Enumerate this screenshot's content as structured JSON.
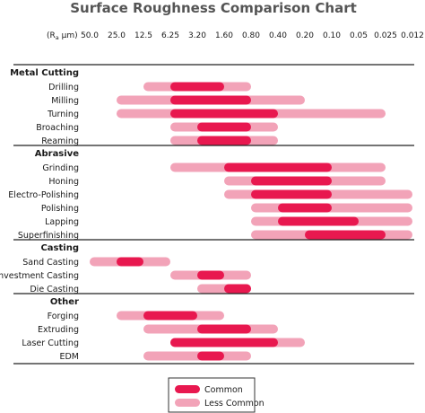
{
  "chart_data": {
    "type": "range-bar",
    "title": "Surface Roughness Comparison Chart",
    "axis": {
      "prefix": "(R",
      "prefix_sub": "a",
      "prefix_unit": " µm)",
      "ticks": [
        "50.0",
        "25.0",
        "12.5",
        "6.25",
        "3.20",
        "1.60",
        "0.80",
        "0.40",
        "0.20",
        "0.10",
        "0.05",
        "0.025",
        "0.012"
      ]
    },
    "legend": {
      "common": "Common",
      "less_common": "Less Common",
      "common_color": "#e8184f",
      "less_common_color": "#f2a3b8"
    },
    "groups": [
      {
        "name": "Metal Cutting",
        "processes": [
          {
            "name": "Drilling",
            "less_common": [
              "12.5",
              "0.80"
            ],
            "common": [
              "6.25",
              "1.60"
            ]
          },
          {
            "name": "Milling",
            "less_common": [
              "25.0",
              "0.20"
            ],
            "common": [
              "6.25",
              "0.80"
            ]
          },
          {
            "name": "Turning",
            "less_common": [
              "25.0",
              "0.025"
            ],
            "common": [
              "6.25",
              "0.40"
            ]
          },
          {
            "name": "Broaching",
            "less_common": [
              "6.25",
              "0.40"
            ],
            "common": [
              "3.20",
              "0.80"
            ]
          },
          {
            "name": "Reaming",
            "less_common": [
              "6.25",
              "0.40"
            ],
            "common": [
              "3.20",
              "0.80"
            ]
          }
        ]
      },
      {
        "name": "Abrasive",
        "processes": [
          {
            "name": "Grinding",
            "less_common": [
              "6.25",
              "0.025"
            ],
            "common": [
              "1.60",
              "0.10"
            ]
          },
          {
            "name": "Honing",
            "less_common": [
              "1.60",
              "0.025"
            ],
            "common": [
              "0.80",
              "0.10"
            ]
          },
          {
            "name": "Electro-Polishing",
            "less_common": [
              "1.60",
              "0.012"
            ],
            "common": [
              "0.80",
              "0.10"
            ]
          },
          {
            "name": "Polishing",
            "less_common": [
              "0.80",
              "0.012"
            ],
            "common": [
              "0.40",
              "0.10"
            ]
          },
          {
            "name": "Lapping",
            "less_common": [
              "0.80",
              "0.012"
            ],
            "common": [
              "0.40",
              "0.05"
            ]
          },
          {
            "name": "Superfinishing",
            "less_common": [
              "0.80",
              "0.012"
            ],
            "common": [
              "0.20",
              "0.025"
            ]
          }
        ]
      },
      {
        "name": "Casting",
        "processes": [
          {
            "name": "Sand Casting",
            "less_common": [
              "50.0",
              "6.25"
            ],
            "common": [
              "25.0",
              "12.5"
            ]
          },
          {
            "name": "Investment Casting",
            "less_common": [
              "6.25",
              "0.80"
            ],
            "common": [
              "3.20",
              "1.60"
            ]
          },
          {
            "name": "Die Casting",
            "less_common": [
              "3.20",
              "0.80"
            ],
            "common": [
              "1.60",
              "0.80"
            ]
          }
        ]
      },
      {
        "name": "Other",
        "processes": [
          {
            "name": "Forging",
            "less_common": [
              "25.0",
              "1.60"
            ],
            "common": [
              "12.5",
              "3.20"
            ]
          },
          {
            "name": "Extruding",
            "less_common": [
              "12.5",
              "0.40"
            ],
            "common": [
              "3.20",
              "0.80"
            ]
          },
          {
            "name": "Laser Cutting",
            "less_common": [
              "6.25",
              "0.20"
            ],
            "common": [
              "6.25",
              "0.40"
            ]
          },
          {
            "name": "EDM",
            "less_common": [
              "12.5",
              "0.80"
            ],
            "common": [
              "3.20",
              "1.60"
            ]
          }
        ]
      }
    ]
  }
}
